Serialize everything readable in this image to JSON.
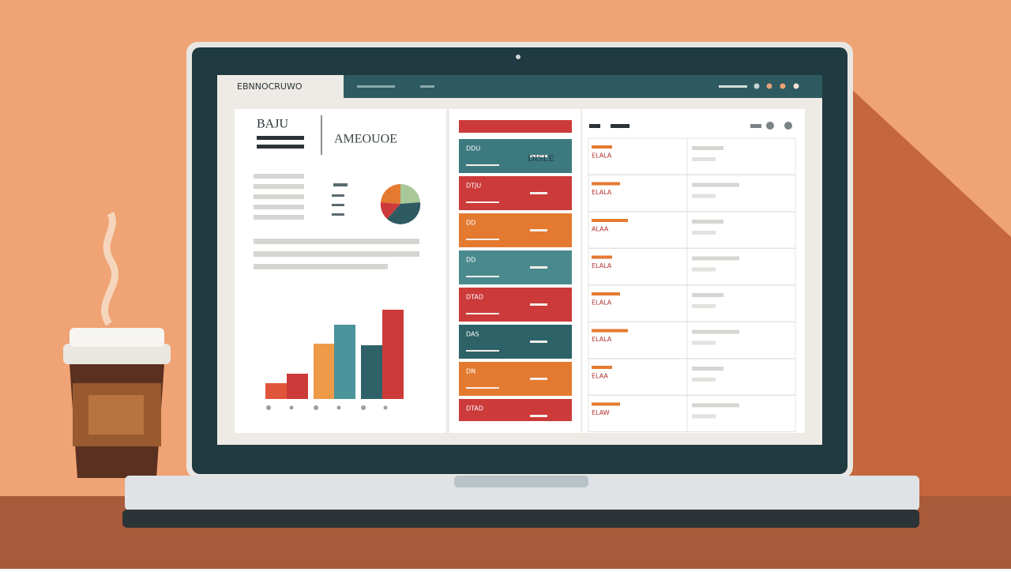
{
  "header": {
    "title": "EBNNOCRUWO"
  },
  "panel": {
    "title": "BAJU",
    "heading": "AMEOUOE"
  },
  "cards": {
    "labels": [
      "DDU",
      "DTJU",
      "DD",
      "DD",
      "DTAD",
      "DAS",
      "DN",
      "DTAD"
    ],
    "highlight": "DISLE"
  },
  "table": {
    "row_labels": [
      "ELALA",
      "ELALA",
      "ALAA",
      "ELALA",
      "ELALA",
      "ELALA",
      "ELAA",
      "ELAW"
    ]
  }
}
